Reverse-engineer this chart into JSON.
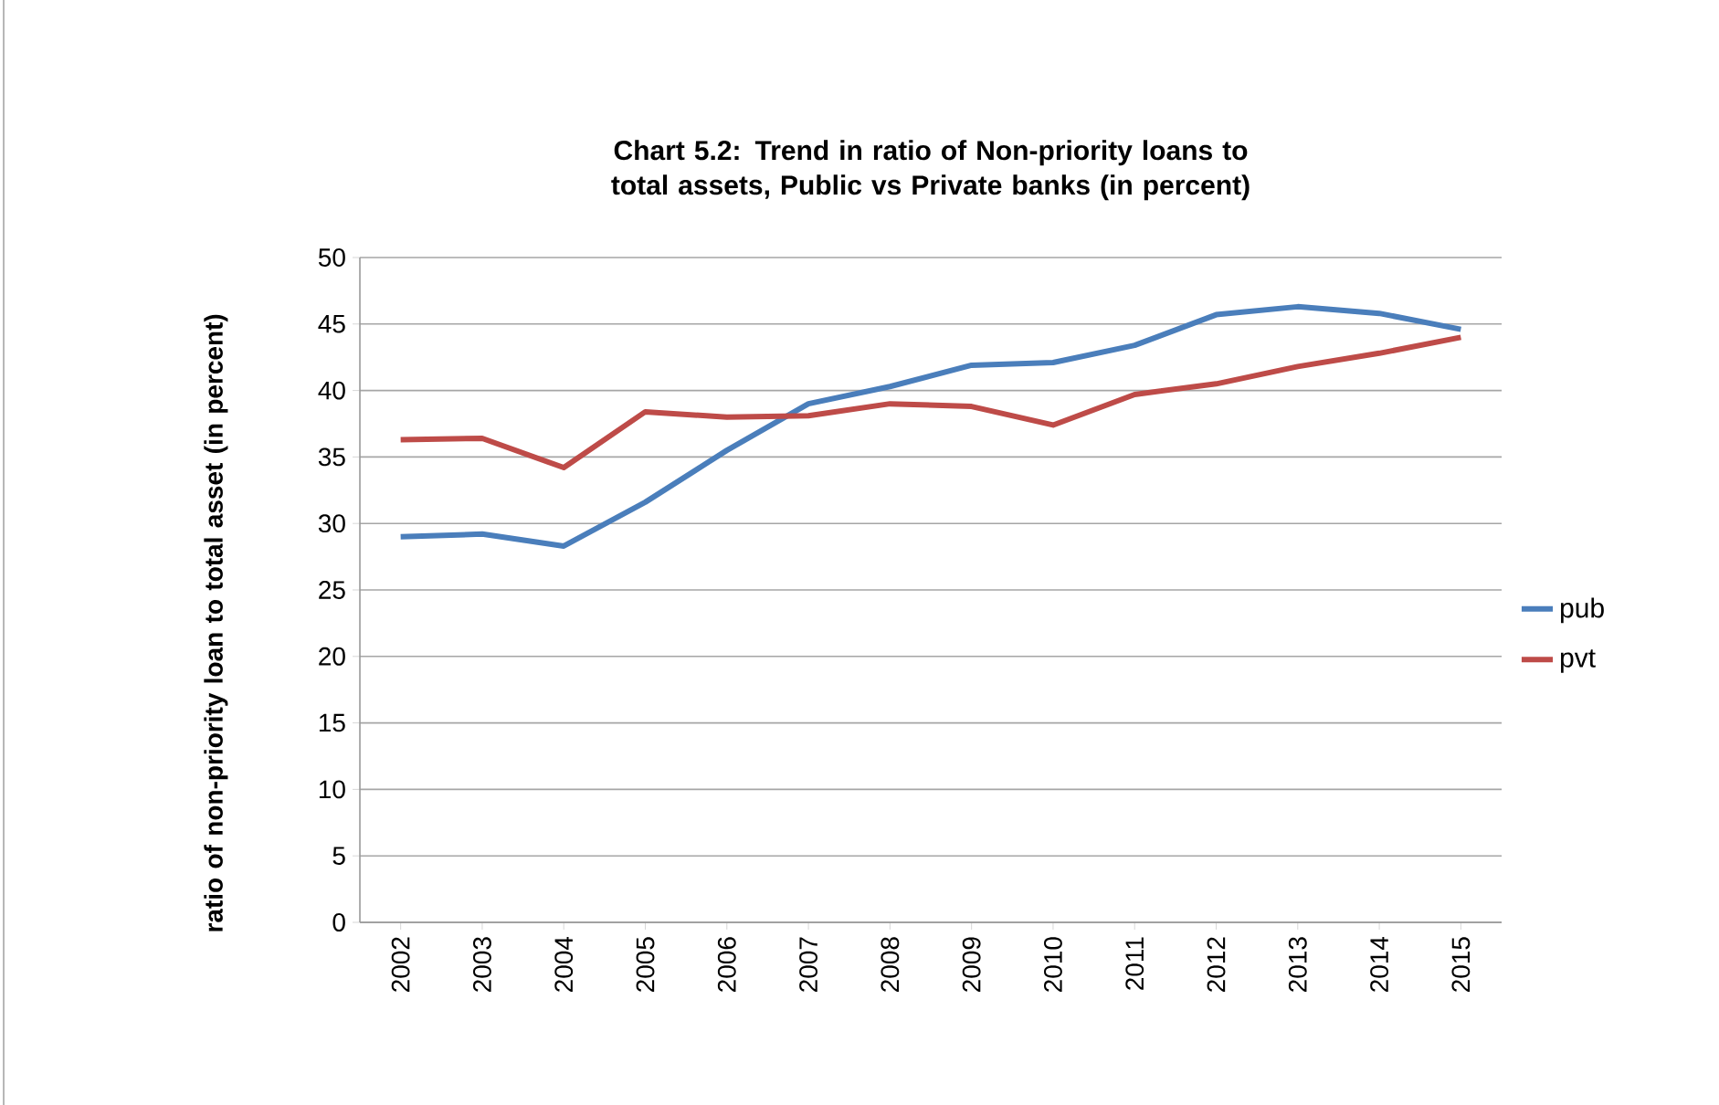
{
  "chart_data": {
    "type": "line",
    "title": "Chart 5.2: Trend in ratio of Non-priority loans to total assets, Public vs Private banks (in percent)",
    "ylabel": "ratio of non-priority loan to total asset (in percent)",
    "categories": [
      "2002",
      "2003",
      "2004",
      "2005",
      "2006",
      "2007",
      "2008",
      "2009",
      "2010",
      "2011",
      "2012",
      "2013",
      "2014",
      "2015"
    ],
    "series": [
      {
        "name": "pub",
        "color": "#4a7ebb",
        "values": [
          29.0,
          29.2,
          28.3,
          31.6,
          35.5,
          39.0,
          40.3,
          41.9,
          42.1,
          43.4,
          45.7,
          46.3,
          45.8,
          44.6
        ]
      },
      {
        "name": "pvt",
        "color": "#be4b48",
        "values": [
          36.3,
          36.4,
          34.2,
          38.4,
          38.0,
          38.1,
          39.0,
          38.8,
          37.4,
          39.7,
          40.5,
          41.8,
          42.8,
          44.0
        ]
      }
    ],
    "ylim": [
      0,
      50
    ],
    "yticks": [
      0,
      5,
      10,
      15,
      20,
      25,
      30,
      35,
      40,
      45,
      50
    ],
    "grid": "y",
    "legend": "right",
    "marker": "none",
    "line_style": "solid"
  }
}
